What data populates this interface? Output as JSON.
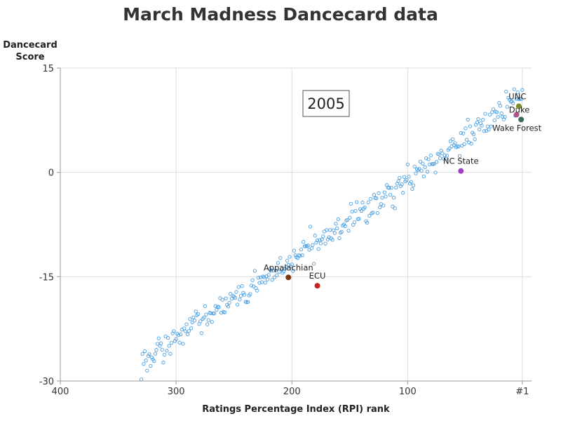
{
  "chart_data": {
    "type": "scatter",
    "title": "March Madness Dancecard data",
    "ylabel_lines": [
      "Dancecard",
      "Score"
    ],
    "xlabel": "Ratings Percentage Index (RPI) rank",
    "xlim": [
      400,
      -7
    ],
    "ylim": [
      -30,
      15
    ],
    "x_ticks": [
      {
        "value": 400,
        "label": "400"
      },
      {
        "value": 300,
        "label": "300"
      },
      {
        "value": 200,
        "label": "200"
      },
      {
        "value": 100,
        "label": "100"
      },
      {
        "value": 1,
        "label": "#1"
      }
    ],
    "y_ticks": [
      {
        "value": 15,
        "label": "15"
      },
      {
        "value": 0,
        "label": "0"
      },
      {
        "value": -15,
        "label": "-15"
      },
      {
        "value": -30,
        "label": "-30"
      }
    ],
    "grid": true,
    "annotation": "2005",
    "point_color": "#4a9fe3",
    "highlighted": [
      {
        "name": "UNC",
        "rpi": 4,
        "score": 9.5,
        "color": "#808a2a"
      },
      {
        "name": "Duke",
        "rpi": 6,
        "score": 8.3,
        "color": "#b8508a"
      },
      {
        "name": "Wake Forest",
        "rpi": 2,
        "score": 7.6,
        "color": "#3d6b5a"
      },
      {
        "name": "NC State",
        "rpi": 54,
        "score": 0.2,
        "color": "#9d3fc4"
      },
      {
        "name": "Appalachian",
        "rpi": 203,
        "score": -15.1,
        "color": "#7a3a10"
      },
      {
        "name": "ECU",
        "rpi": 178,
        "score": -16.3,
        "color": "#c81e1e"
      }
    ],
    "point_pattern": {
      "rpi_range": [
        1,
        330
      ],
      "score_at_rpi_1": 10.5,
      "score_at_rpi_330": -27.5,
      "scatter": 1.8
    }
  }
}
